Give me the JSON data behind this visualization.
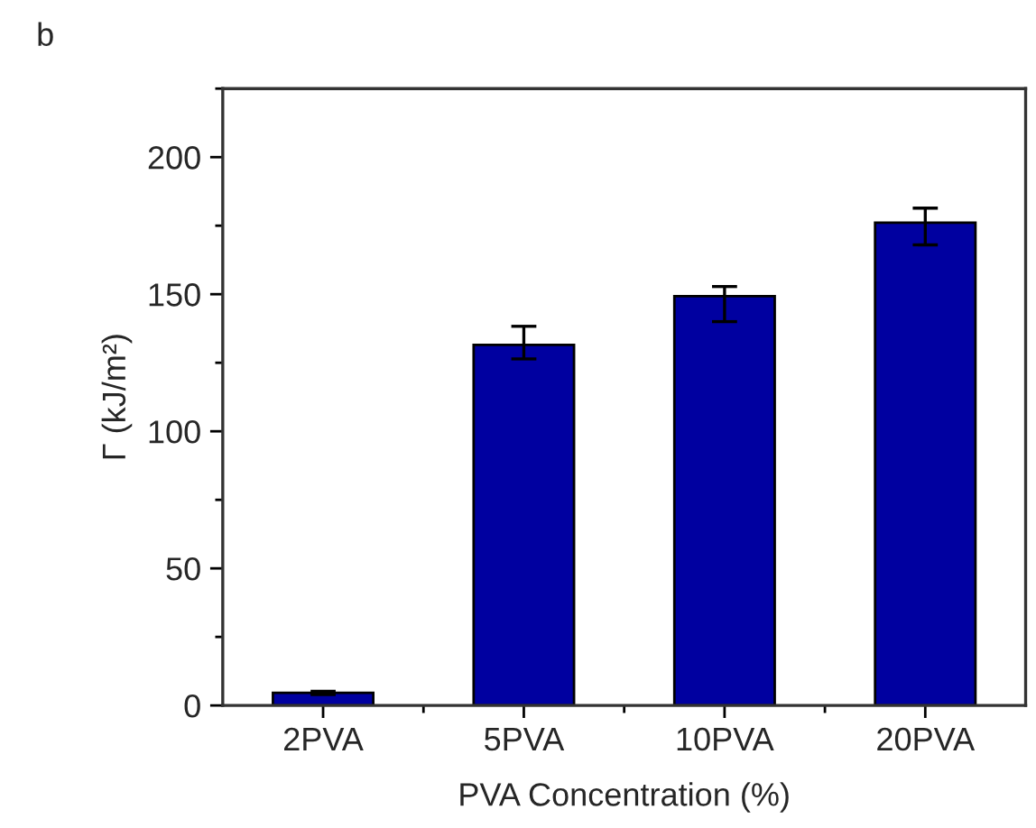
{
  "chart_data": {
    "type": "bar",
    "categories": [
      "2PVA",
      "5PVA",
      "10PVA",
      "20PVA"
    ],
    "values": [
      4.6,
      131.5,
      149.3,
      176.1
    ],
    "errors": [
      [
        4,
        5.2
      ],
      [
        126.4,
        138.3
      ],
      [
        140,
        152.8
      ],
      [
        168,
        181.4
      ]
    ],
    "color": "#0000a0",
    "xlabel": "PVA Concentration (%)",
    "ylabel": "Γ (kJ/m²)",
    "ylim": [
      0,
      225
    ],
    "yticks": [
      0,
      50,
      100,
      150,
      200
    ],
    "annotations": [
      "b"
    ],
    "grid": false,
    "legend": false
  }
}
